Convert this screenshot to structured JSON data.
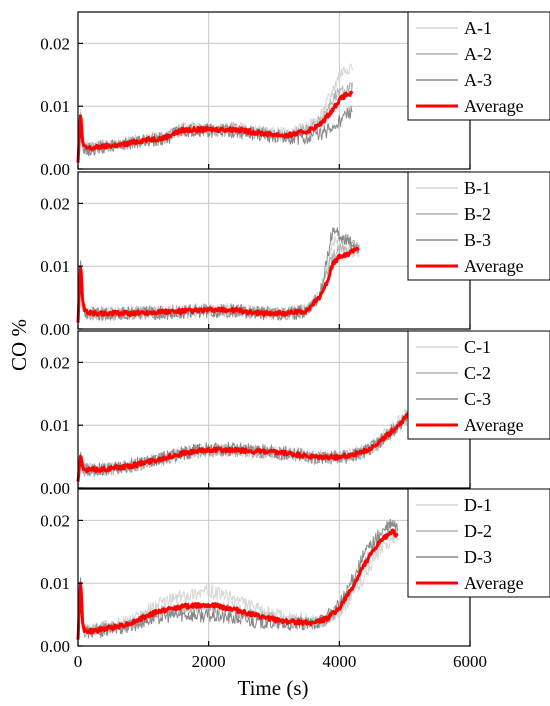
{
  "chart_data": {
    "type": "line",
    "xlabel": "Time (s)",
    "ylabel": "CO %",
    "xlim": [
      0,
      6000
    ],
    "ylim": [
      0,
      0.025
    ],
    "xticks": [
      "0",
      "2000",
      "4000",
      "6000"
    ],
    "yticks": [
      "0.00",
      "0.01",
      "0.02"
    ],
    "grid": true,
    "legend_placement": "top-right",
    "colors": {
      "individual": [
        "#d6d6d6",
        "#b2b2b2",
        "#8a8a8a"
      ],
      "average": "#ff0000"
    },
    "panels": [
      {
        "name": "A",
        "series": [
          {
            "name": "A-1",
            "x": [
              0,
              40,
              70,
              100,
              200,
              400,
              700,
              1000,
              1300,
              1600,
              2000,
              2400,
              2800,
              3200,
              3500,
              3700,
              3900,
              4000,
              4100,
              4200
            ],
            "y": [
              0.001,
              0.0094,
              0.0045,
              0.0035,
              0.0034,
              0.0037,
              0.004,
              0.0047,
              0.005,
              0.0065,
              0.0064,
              0.0065,
              0.0058,
              0.0055,
              0.0065,
              0.008,
              0.0125,
              0.015,
              0.016,
              0.0165
            ]
          },
          {
            "name": "A-2",
            "x": [
              0,
              40,
              70,
              100,
              200,
              400,
              700,
              1000,
              1300,
              1600,
              2000,
              2400,
              2800,
              3200,
              3500,
              3700,
              3900,
              4000,
              4100,
              4200
            ],
            "y": [
              0.001,
              0.009,
              0.004,
              0.0033,
              0.0032,
              0.0036,
              0.0039,
              0.0046,
              0.0049,
              0.0062,
              0.0063,
              0.0062,
              0.0057,
              0.0052,
              0.0062,
              0.0075,
              0.011,
              0.012,
              0.0125,
              0.013
            ]
          },
          {
            "name": "A-3",
            "x": [
              0,
              40,
              70,
              100,
              200,
              400,
              700,
              1000,
              1300,
              1600,
              2000,
              2400,
              2800,
              3200,
              3500,
              3700,
              3900,
              4000,
              4100,
              4200
            ],
            "y": [
              0.001,
              0.0085,
              0.004,
              0.0032,
              0.0031,
              0.0035,
              0.0038,
              0.0045,
              0.0048,
              0.006,
              0.0061,
              0.006,
              0.0055,
              0.005,
              0.005,
              0.0055,
              0.0065,
              0.0075,
              0.0085,
              0.009
            ]
          },
          {
            "name": "Average",
            "x": [
              0,
              40,
              70,
              100,
              200,
              400,
              700,
              1000,
              1300,
              1600,
              2000,
              2400,
              2800,
              3200,
              3500,
              3700,
              3900,
              4000,
              4100,
              4200
            ],
            "y": [
              0.001,
              0.0093,
              0.0042,
              0.0034,
              0.0033,
              0.0036,
              0.0039,
              0.0046,
              0.0049,
              0.0062,
              0.0063,
              0.0063,
              0.0057,
              0.0053,
              0.006,
              0.007,
              0.0095,
              0.011,
              0.0118,
              0.012
            ]
          }
        ]
      },
      {
        "name": "B",
        "series": [
          {
            "name": "B-1",
            "x": [
              0,
              40,
              70,
              100,
              200,
              400,
              800,
              1200,
              1600,
              2000,
              2400,
              2800,
              3200,
              3500,
              3700,
              3800,
              3900,
              4000,
              4100,
              4200,
              4300
            ],
            "y": [
              0.001,
              0.011,
              0.005,
              0.003,
              0.0025,
              0.0025,
              0.0026,
              0.0027,
              0.0028,
              0.003,
              0.003,
              0.0026,
              0.0025,
              0.003,
              0.0055,
              0.0095,
              0.0135,
              0.0145,
              0.0135,
              0.0125,
              0.0125
            ]
          },
          {
            "name": "B-2",
            "x": [
              0,
              40,
              70,
              100,
              200,
              400,
              800,
              1200,
              1600,
              2000,
              2400,
              2800,
              3200,
              3500,
              3700,
              3800,
              3900,
              4000,
              4100,
              4200,
              4300
            ],
            "y": [
              0.001,
              0.0105,
              0.0048,
              0.0029,
              0.0024,
              0.0024,
              0.0025,
              0.0027,
              0.0028,
              0.003,
              0.0029,
              0.0025,
              0.0025,
              0.0028,
              0.005,
              0.0085,
              0.0115,
              0.0125,
              0.0125,
              0.0132,
              0.0135
            ]
          },
          {
            "name": "B-3",
            "x": [
              0,
              40,
              70,
              100,
              200,
              400,
              800,
              1200,
              1600,
              2000,
              2400,
              2800,
              3200,
              3500,
              3700,
              3800,
              3900,
              4000,
              4100,
              4200,
              4300
            ],
            "y": [
              0.001,
              0.0108,
              0.0047,
              0.0028,
              0.0024,
              0.0024,
              0.0025,
              0.0026,
              0.0027,
              0.0029,
              0.0029,
              0.0025,
              0.0024,
              0.0028,
              0.0052,
              0.0105,
              0.016,
              0.015,
              0.0142,
              0.0135,
              0.013
            ]
          },
          {
            "name": "Average",
            "x": [
              0,
              40,
              70,
              100,
              200,
              400,
              800,
              1200,
              1600,
              2000,
              2400,
              2800,
              3200,
              3500,
              3700,
              3800,
              3900,
              4000,
              4100,
              4200,
              4300
            ],
            "y": [
              0.001,
              0.0108,
              0.0048,
              0.0029,
              0.0025,
              0.0025,
              0.0025,
              0.0027,
              0.0028,
              0.003,
              0.003,
              0.0025,
              0.0025,
              0.0029,
              0.0052,
              0.0072,
              0.0103,
              0.0115,
              0.0117,
              0.0125,
              0.013
            ]
          }
        ]
      },
      {
        "name": "C",
        "series": [
          {
            "name": "C-1",
            "x": [
              0,
              40,
              70,
              100,
              200,
              400,
              800,
              1200,
              1600,
              2000,
              2400,
              2800,
              3200,
              3600,
              4000,
              4200,
              4400,
              4600,
              4800,
              5000,
              5100
            ],
            "y": [
              0.001,
              0.0058,
              0.0035,
              0.003,
              0.003,
              0.003,
              0.0035,
              0.0045,
              0.0055,
              0.0062,
              0.006,
              0.0058,
              0.0055,
              0.005,
              0.005,
              0.0055,
              0.006,
              0.0075,
              0.0095,
              0.0115,
              0.0125
            ]
          },
          {
            "name": "C-2",
            "x": [
              0,
              40,
              70,
              100,
              200,
              400,
              800,
              1200,
              1600,
              2000,
              2400,
              2800,
              3200,
              3600,
              4000,
              4200,
              4400,
              4600,
              4800,
              5000,
              5100
            ],
            "y": [
              0.001,
              0.0055,
              0.0033,
              0.0028,
              0.0028,
              0.0029,
              0.0034,
              0.0044,
              0.0053,
              0.006,
              0.0059,
              0.0057,
              0.0054,
              0.0048,
              0.0048,
              0.0052,
              0.0058,
              0.007,
              0.0088,
              0.0108,
              0.0118
            ]
          },
          {
            "name": "C-3",
            "x": [
              0,
              40,
              70,
              100,
              200,
              400,
              800,
              1200,
              1600,
              2000,
              2400,
              2800,
              3200,
              3600,
              4000,
              4200,
              4400,
              4600,
              4800,
              5000,
              5100
            ],
            "y": [
              0.001,
              0.0056,
              0.0034,
              0.0029,
              0.0029,
              0.003,
              0.0036,
              0.0046,
              0.0056,
              0.0063,
              0.0062,
              0.0059,
              0.0056,
              0.0049,
              0.0049,
              0.0053,
              0.0059,
              0.0072,
              0.009,
              0.011,
              0.012
            ]
          },
          {
            "name": "Average",
            "x": [
              0,
              40,
              70,
              100,
              200,
              400,
              800,
              1200,
              1600,
              2000,
              2400,
              2800,
              3200,
              3600,
              4000,
              4200,
              4400,
              4600,
              4800,
              5000,
              5100
            ],
            "y": [
              0.001,
              0.0055,
              0.0033,
              0.0028,
              0.0029,
              0.003,
              0.0035,
              0.0045,
              0.0055,
              0.0061,
              0.006,
              0.0058,
              0.0055,
              0.0049,
              0.0049,
              0.0053,
              0.0059,
              0.0072,
              0.009,
              0.011,
              0.0122
            ]
          }
        ]
      },
      {
        "name": "D",
        "series": [
          {
            "name": "D-1",
            "x": [
              0,
              40,
              70,
              100,
              200,
              400,
              800,
              1200,
              1600,
              2000,
              2400,
              2800,
              3200,
              3600,
              3800,
              4000,
              4200,
              4400,
              4600,
              4800,
              4900
            ],
            "y": [
              0.001,
              0.011,
              0.004,
              0.0025,
              0.0025,
              0.003,
              0.004,
              0.0065,
              0.008,
              0.0088,
              0.0075,
              0.0055,
              0.0045,
              0.004,
              0.0042,
              0.0055,
              0.008,
              0.0115,
              0.0148,
              0.017,
              0.018
            ]
          },
          {
            "name": "D-2",
            "x": [
              0,
              40,
              70,
              100,
              200,
              400,
              800,
              1200,
              1600,
              2000,
              2400,
              2800,
              3200,
              3600,
              3800,
              4000,
              4200,
              4400,
              4600,
              4800,
              4900
            ],
            "y": [
              0.001,
              0.0105,
              0.0038,
              0.0024,
              0.0023,
              0.0027,
              0.0035,
              0.0052,
              0.006,
              0.0062,
              0.0056,
              0.0046,
              0.0038,
              0.0036,
              0.0042,
              0.0058,
              0.0095,
              0.0135,
              0.0165,
              0.0185,
              0.0178
            ]
          },
          {
            "name": "D-3",
            "x": [
              0,
              40,
              70,
              100,
              200,
              400,
              800,
              1200,
              1600,
              2000,
              2400,
              2800,
              3200,
              3600,
              3800,
              4000,
              4200,
              4400,
              4600,
              4800,
              4900
            ],
            "y": [
              0.001,
              0.0108,
              0.0039,
              0.0024,
              0.0022,
              0.0025,
              0.0032,
              0.0046,
              0.005,
              0.0048,
              0.0044,
              0.0038,
              0.0034,
              0.0035,
              0.0045,
              0.0065,
              0.0105,
              0.015,
              0.0175,
              0.0195,
              0.0185
            ]
          },
          {
            "name": "Average",
            "x": [
              0,
              40,
              70,
              100,
              200,
              400,
              800,
              1200,
              1600,
              2000,
              2400,
              2800,
              3200,
              3600,
              3800,
              4000,
              4200,
              4400,
              4600,
              4800,
              4900
            ],
            "y": [
              0.001,
              0.011,
              0.0039,
              0.0024,
              0.0023,
              0.0027,
              0.0036,
              0.0054,
              0.0063,
              0.0066,
              0.0058,
              0.0046,
              0.0039,
              0.0037,
              0.0043,
              0.006,
              0.0093,
              0.0133,
              0.0163,
              0.0183,
              0.0175
            ]
          }
        ]
      }
    ]
  }
}
